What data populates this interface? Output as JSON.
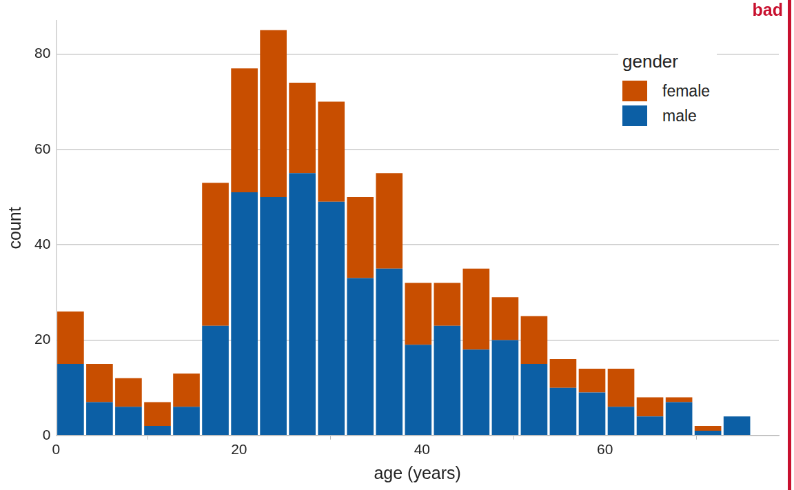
{
  "chart_data": {
    "type": "histogram",
    "x_label": "age (years)",
    "y_label": "count",
    "annotation": "bad",
    "bins": [
      0,
      3.17,
      6.33,
      9.5,
      12.67,
      15.83,
      19,
      22.17,
      25.33,
      28.5,
      31.67,
      34.83,
      38,
      41.17,
      44.33,
      47.5,
      50.67,
      53.83,
      57,
      60.17,
      63.33,
      66.5,
      69.67,
      72.83,
      76
    ],
    "legend_title": "gender",
    "series": [
      {
        "name": "female",
        "color": "#c84e00",
        "values": [
          11,
          8,
          6,
          5,
          7,
          30,
          26,
          35,
          19,
          21,
          17,
          20,
          13,
          9,
          17,
          9,
          10,
          6,
          5,
          8,
          4,
          1,
          1,
          0
        ]
      },
      {
        "name": "male",
        "color": "#0c5fa5",
        "values": [
          15,
          7,
          6,
          2,
          6,
          23,
          51,
          50,
          55,
          49,
          33,
          35,
          19,
          23,
          18,
          20,
          15,
          10,
          9,
          6,
          4,
          7,
          1,
          4
        ]
      }
    ],
    "xlim": [
      0,
      79
    ],
    "xticks": [
      0,
      20,
      40,
      60
    ],
    "ylim": [
      0,
      87
    ],
    "yticks": [
      0,
      20,
      40,
      60,
      80
    ],
    "stacked": true,
    "grid": true,
    "legend": "top-right"
  }
}
